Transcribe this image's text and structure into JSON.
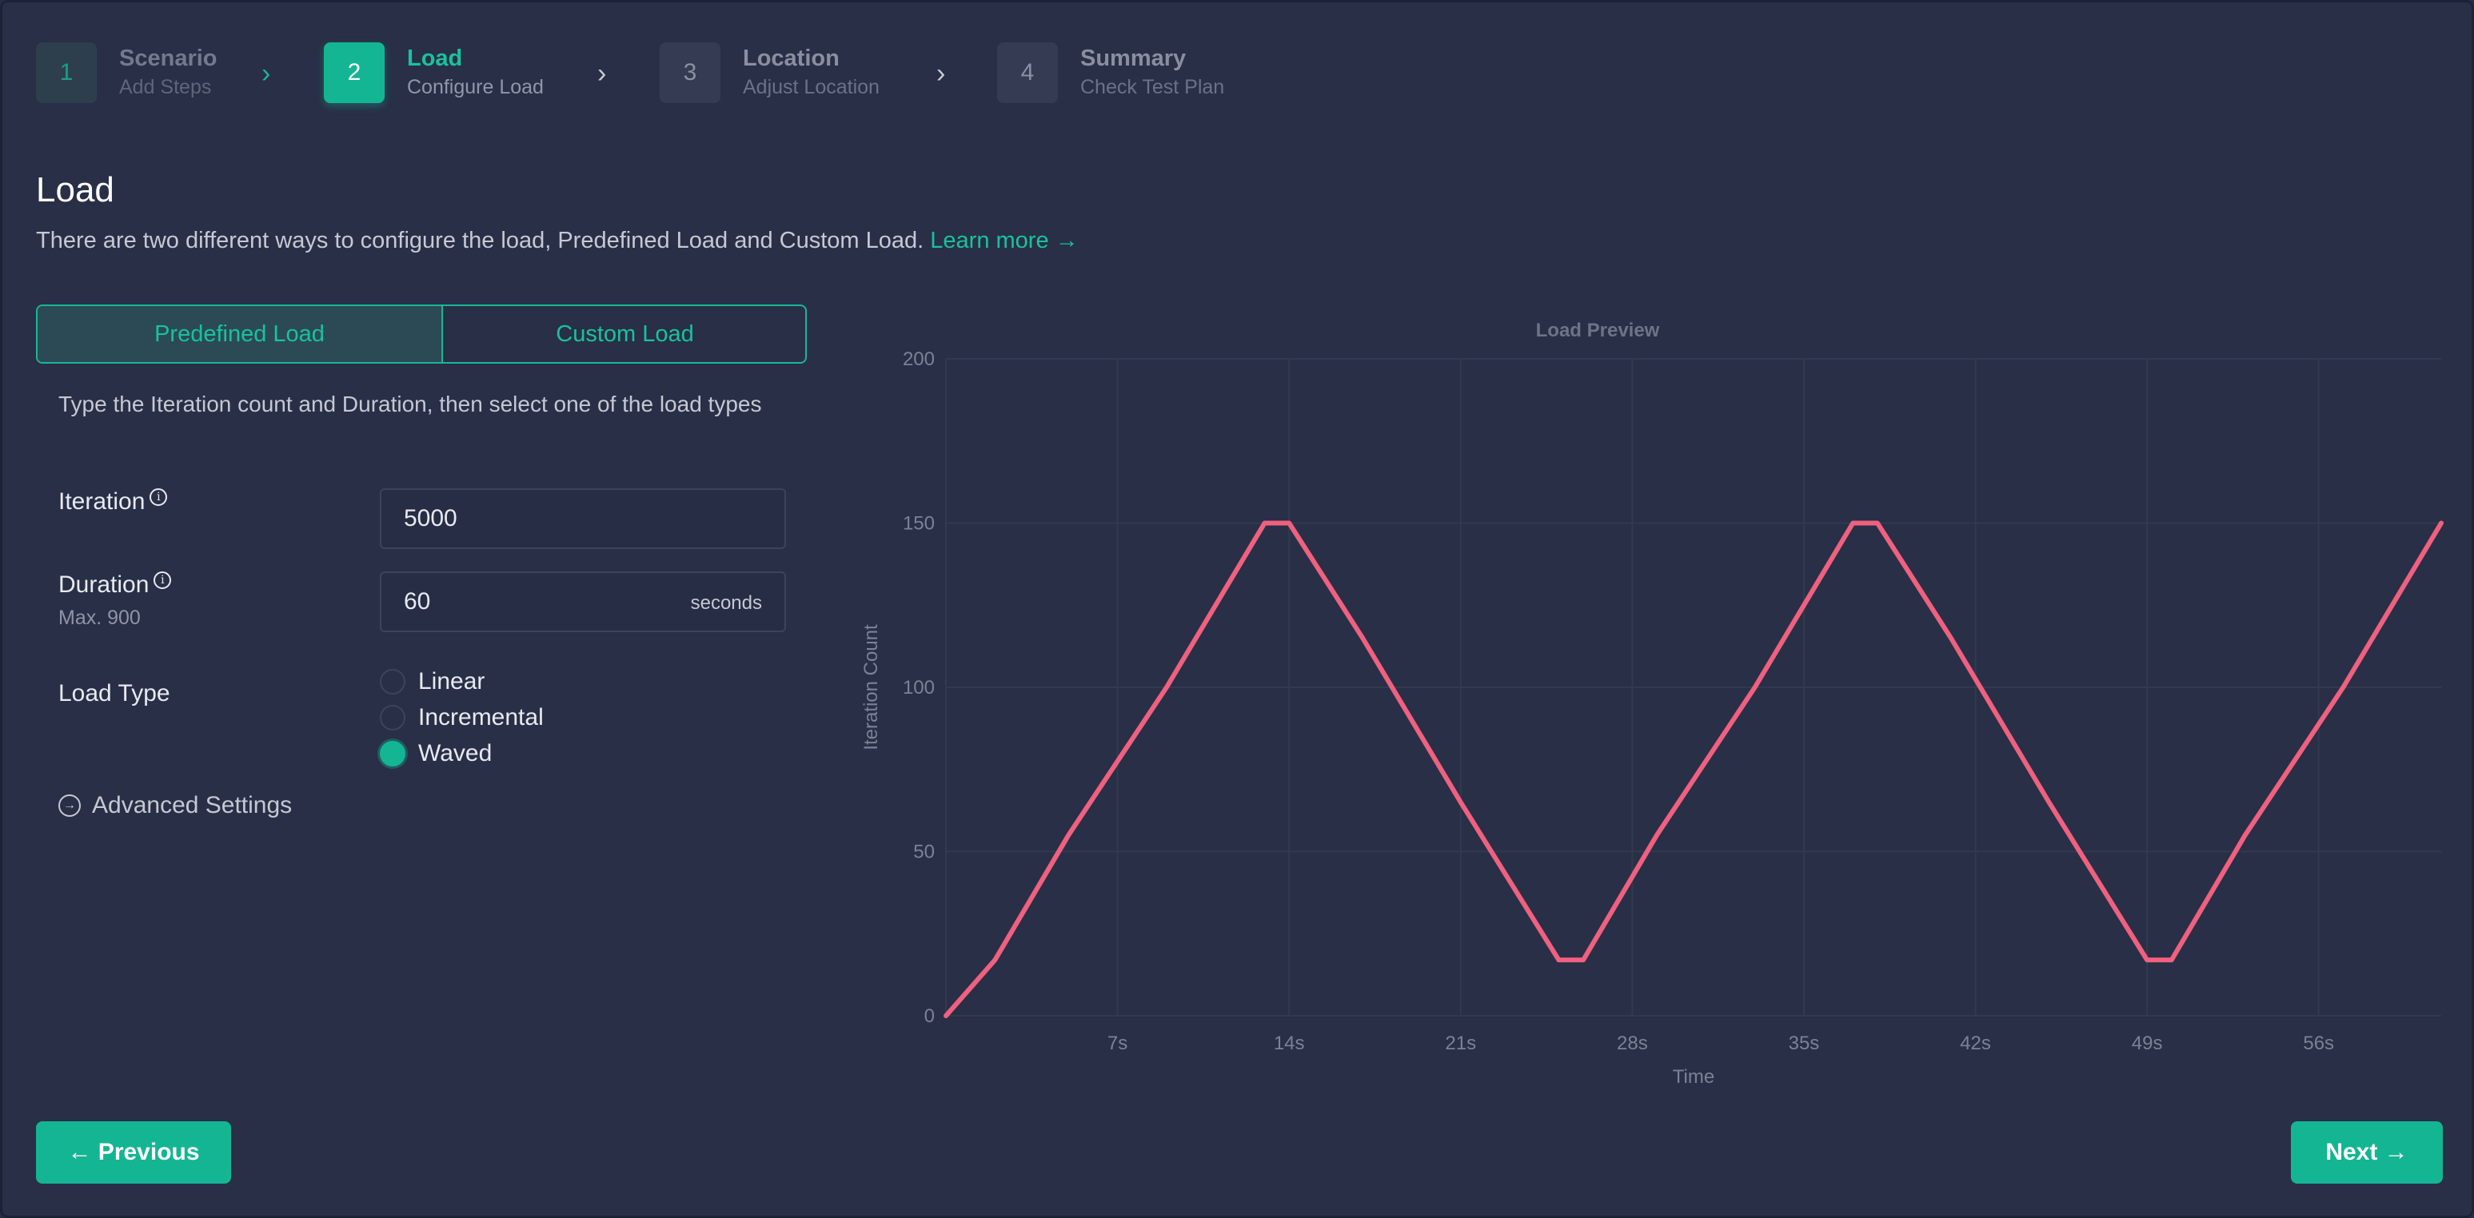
{
  "stepper": {
    "steps": [
      {
        "num": "1",
        "title": "Scenario",
        "sub": "Add Steps",
        "state": "done"
      },
      {
        "num": "2",
        "title": "Load",
        "sub": "Configure Load",
        "state": "active"
      },
      {
        "num": "3",
        "title": "Location",
        "sub": "Adjust Location",
        "state": "upcoming"
      },
      {
        "num": "4",
        "title": "Summary",
        "sub": "Check Test Plan",
        "state": "upcoming"
      }
    ]
  },
  "header": {
    "title": "Load",
    "description": "There are two different ways to configure the load, Predefined Load and Custom Load.",
    "learn_more": "Learn more →"
  },
  "tabs": {
    "predefined": "Predefined Load",
    "custom": "Custom Load",
    "selected": "Predefined Load"
  },
  "form": {
    "helper": "Type the Iteration count and Duration, then select one of the load types",
    "iteration_label": "Iteration",
    "iteration_value": "5000",
    "duration_label": "Duration",
    "duration_max": "Max. 900",
    "duration_value": "60",
    "duration_unit": "seconds",
    "load_type_label": "Load Type",
    "load_types": [
      "Linear",
      "Incremental",
      "Waved"
    ],
    "selected_load_type": "Waved",
    "advanced": "Advanced Settings"
  },
  "chart_data": {
    "type": "line",
    "title": "Load Preview",
    "xlabel": "Time",
    "ylabel": "Iteration Count",
    "ylim": [
      0,
      200
    ],
    "xlim": [
      0,
      61
    ],
    "yticks": [
      "0",
      "50",
      "100",
      "150",
      "200"
    ],
    "xticks": [
      "7s",
      "14s",
      "21s",
      "28s",
      "35s",
      "42s",
      "49s",
      "56s"
    ],
    "grid": true,
    "series": [
      {
        "color": "#f0607f",
        "x": [
          0,
          2,
          5,
          9,
          13,
          14,
          17,
          21,
          25,
          26,
          29,
          33,
          37,
          38,
          41,
          45,
          49,
          50,
          53,
          57,
          61
        ],
        "y": [
          0,
          17,
          55,
          100,
          150,
          150,
          115,
          65,
          17,
          17,
          55,
          100,
          150,
          150,
          115,
          65,
          17,
          17,
          55,
          100,
          150
        ]
      }
    ]
  },
  "nav": {
    "previous": "← Previous",
    "next": "Next →"
  },
  "colors": {
    "accent": "#14b592",
    "background": "#282f47",
    "line": "#f0607f"
  }
}
